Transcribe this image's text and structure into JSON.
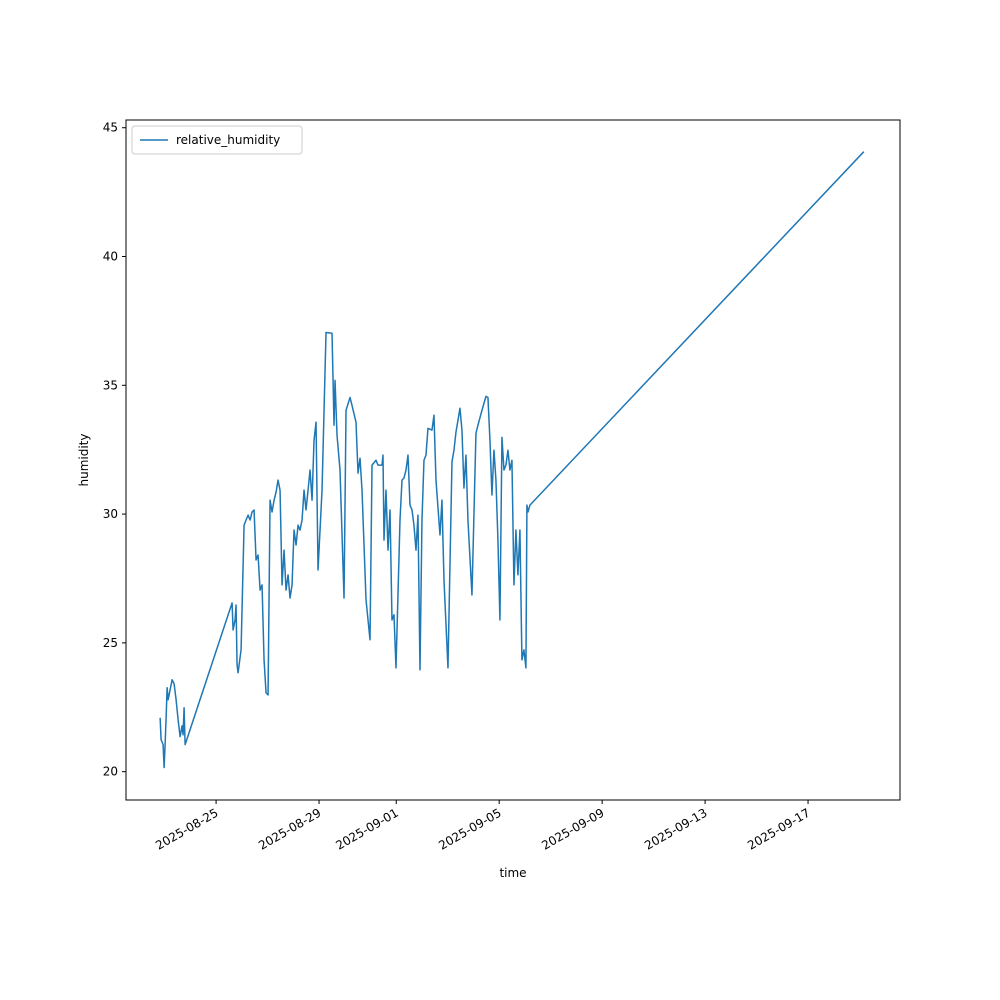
{
  "chart_data": {
    "type": "line",
    "xlabel": "time",
    "ylabel": "humidity",
    "x": [
      "2025-08-22T19:49",
      "2025-08-22T20:44",
      "2025-08-22T22:36",
      "2025-08-22T23:32",
      "2025-08-23T00:28",
      "2025-08-23T01:24",
      "2025-08-23T02:20",
      "2025-08-23T03:16",
      "2025-08-23T05:08",
      "2025-08-23T06:59",
      "2025-08-23T08:51",
      "2025-08-23T10:43",
      "2025-08-23T12:35",
      "2025-08-23T14:27",
      "2025-08-23T16:19",
      "2025-08-23T17:14",
      "2025-08-23T18:10",
      "2025-08-23T19:07",
      "2025-08-25T14:55",
      "2025-08-25T15:51",
      "2025-08-25T17:43",
      "2025-08-25T18:38",
      "2025-08-25T19:34",
      "2025-08-25T20:30",
      "2025-08-25T23:18",
      "2025-08-26T02:06",
      "2025-08-26T03:58",
      "2025-08-26T05:50",
      "2025-08-26T07:41",
      "2025-08-26T09:33",
      "2025-08-26T11:25",
      "2025-08-26T13:17",
      "2025-08-26T15:09",
      "2025-08-26T17:01",
      "2025-08-26T18:52",
      "2025-08-26T20:44",
      "2025-08-26T22:36",
      "2025-08-27T00:28",
      "2025-08-27T02:20",
      "2025-08-27T04:11",
      "2025-08-27T06:04",
      "2025-08-27T07:55",
      "2025-08-27T09:47",
      "2025-08-27T11:39",
      "2025-08-27T13:31",
      "2025-08-27T15:23",
      "2025-08-27T17:14",
      "2025-08-27T19:07",
      "2025-08-27T20:58",
      "2025-08-27T22:50",
      "2025-08-28T00:42",
      "2025-08-28T02:34",
      "2025-08-28T04:26",
      "2025-08-28T06:17",
      "2025-08-28T08:10",
      "2025-08-28T10:01",
      "2025-08-28T11:53",
      "2025-08-28T13:45",
      "2025-08-28T15:37",
      "2025-08-28T17:29",
      "2025-08-28T19:20",
      "2025-08-28T21:12",
      "2025-08-28T23:04",
      "2025-08-29T02:48",
      "2025-08-29T06:31",
      "2025-08-29T12:07",
      "2025-08-29T13:59",
      "2025-08-29T14:55",
      "2025-08-29T16:47",
      "2025-08-29T19:34",
      "2025-08-29T23:18",
      "2025-08-30T01:10",
      "2025-08-30T04:53",
      "2025-08-30T06:46",
      "2025-08-30T10:29",
      "2025-08-30T12:21",
      "2025-08-30T14:13",
      "2025-08-30T16:05",
      "2025-08-30T19:49",
      "2025-08-30T23:32",
      "2025-08-31T01:24",
      "2025-08-31T05:08",
      "2025-08-31T06:59",
      "2025-08-31T10:43",
      "2025-08-31T11:39",
      "2025-08-31T12:35",
      "2025-08-31T14:27",
      "2025-08-31T16:19",
      "2025-08-31T18:11",
      "2025-08-31T20:02",
      "2025-08-31T21:54",
      "2025-08-31T23:46",
      "2025-09-01T03:30",
      "2025-09-01T05:22",
      "2025-09-01T07:13",
      "2025-09-01T09:05",
      "2025-09-01T10:57",
      "2025-09-01T12:49",
      "2025-09-01T14:41",
      "2025-09-01T16:32",
      "2025-09-01T18:25",
      "2025-09-01T20:16",
      "2025-09-01T22:08",
      "2025-09-02T00:00",
      "2025-09-02T01:52",
      "2025-09-02T03:44",
      "2025-09-02T05:35",
      "2025-09-02T09:19",
      "2025-09-02T11:11",
      "2025-09-02T13:03",
      "2025-09-02T16:47",
      "2025-09-02T18:38",
      "2025-09-02T20:31",
      "2025-09-03T00:14",
      "2025-09-03T03:58",
      "2025-09-03T05:50",
      "2025-09-03T07:41",
      "2025-09-03T09:33",
      "2025-09-03T11:25",
      "2025-09-03T13:17",
      "2025-09-03T15:09",
      "2025-09-03T17:01",
      "2025-09-03T18:52",
      "2025-09-03T22:36",
      "2025-09-04T02:20",
      "2025-09-04T04:12",
      "2025-09-04T07:55",
      "2025-09-04T11:39",
      "2025-09-04T13:31",
      "2025-09-04T15:23",
      "2025-09-04T17:14",
      "2025-09-04T19:07",
      "2025-09-04T20:58",
      "2025-09-04T22:50",
      "2025-09-05T00:42",
      "2025-09-05T02:34",
      "2025-09-05T04:26",
      "2025-09-05T06:17",
      "2025-09-05T08:10",
      "2025-09-05T10:01",
      "2025-09-05T11:53",
      "2025-09-05T13:45",
      "2025-09-05T15:37",
      "2025-09-05T17:29",
      "2025-09-05T19:20",
      "2025-09-05T21:12",
      "2025-09-05T23:04",
      "2025-09-06T00:56",
      "2025-09-06T01:52",
      "2025-09-06T02:48",
      "2025-09-06T04:40",
      "2025-09-19T04:00"
    ],
    "series": [
      {
        "name": "relative_humidity",
        "color": "#1f77b4",
        "values": [
          22.09,
          21.24,
          21.05,
          20.16,
          21.05,
          22.09,
          23.26,
          22.79,
          23.18,
          23.57,
          23.41,
          22.79,
          22.02,
          21.36,
          21.78,
          21.43,
          22.48,
          21.05,
          26.55,
          25.5,
          25.89,
          26.47,
          24.15,
          23.84,
          24.73,
          29.57,
          29.77,
          29.96,
          29.77,
          30.08,
          30.16,
          28.22,
          28.41,
          27.05,
          27.25,
          24.34,
          23.06,
          22.98,
          30.54,
          30.08,
          30.54,
          30.85,
          31.32,
          30.93,
          27.25,
          28.6,
          27.05,
          27.64,
          26.74,
          27.25,
          29.38,
          28.8,
          29.57,
          29.38,
          29.77,
          30.93,
          30.16,
          30.93,
          31.71,
          30.54,
          32.87,
          33.57,
          27.83,
          30.93,
          37.05,
          37.02,
          33.45,
          35.19,
          33.06,
          31.71,
          26.74,
          34.03,
          34.53,
          34.22,
          33.57,
          31.59,
          32.17,
          30.93,
          26.67,
          25.12,
          31.9,
          32.09,
          31.9,
          31.9,
          32.29,
          28.99,
          30.93,
          28.6,
          30.16,
          25.89,
          26.09,
          24.03,
          29.77,
          31.32,
          31.4,
          31.71,
          32.29,
          30.35,
          30.16,
          29.57,
          28.6,
          29.96,
          23.95,
          29.77,
          32.09,
          32.29,
          33.33,
          33.26,
          33.84,
          31.32,
          29.19,
          30.54,
          27.44,
          24.03,
          32.02,
          32.48,
          33.18,
          33.64,
          34.11,
          33.26,
          31.01,
          32.29,
          29.77,
          26.86,
          33.14,
          33.45,
          34.03,
          34.57,
          34.53,
          32.87,
          30.74,
          32.48,
          31.32,
          28.99,
          25.89,
          32.98,
          31.71,
          31.9,
          32.48,
          31.71,
          32.09,
          27.25,
          29.38,
          27.64,
          29.38,
          24.34,
          24.73,
          24.03,
          30.35,
          30.08,
          30.35,
          44.07
        ]
      }
    ],
    "xlim": [
      "2025-08-21T12:00",
      "2025-09-20T13:45"
    ],
    "xticks": [
      "2025-08-25",
      "2025-08-29",
      "2025-09-01",
      "2025-09-05",
      "2025-09-09",
      "2025-09-13",
      "2025-09-17"
    ],
    "ylim": [
      18.9,
      45.3
    ],
    "yticks": [
      20,
      25,
      30,
      35,
      40,
      45
    ],
    "grid": false,
    "legend": "upper left"
  }
}
